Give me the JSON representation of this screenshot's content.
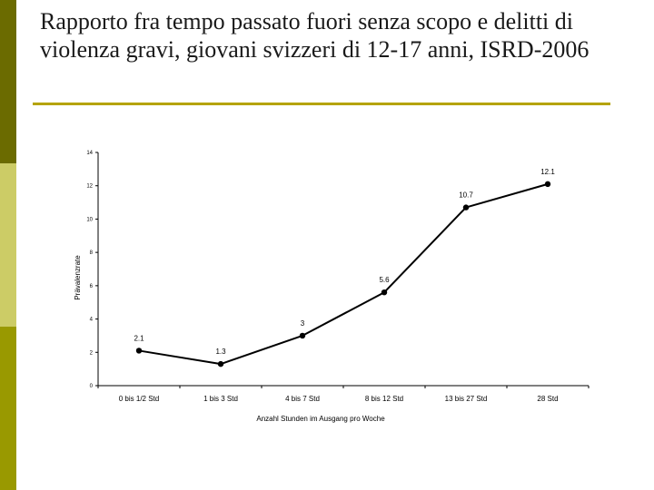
{
  "slide": {
    "title": "Rapporto fra tempo passato fuori senza scopo e delitti di violenza gravi, giovani svizzeri di 12-17 anni, ISRD-2006",
    "sidebar_colors": [
      "#6b6b00",
      "#cccc66",
      "#999900"
    ],
    "rule_color": "#b5a300"
  },
  "chart_data": {
    "type": "line",
    "categories": [
      "0 bis 1/2 Std",
      "1 bis 3 Std",
      "4 bis 7 Std",
      "8 bis 12 Std",
      "13 bis 27 Std",
      "28 Std"
    ],
    "series": [
      {
        "values": [
          2.1,
          1.3,
          3,
          5.6,
          10.7,
          12.1
        ]
      }
    ],
    "data_labels": [
      "2.1",
      "1.3",
      "3",
      "5.6",
      "10.7",
      "12.1"
    ],
    "xlabel": "Anzahl Stunden im Ausgang pro Woche",
    "ylabel": "Prävalenzrate",
    "ylim": [
      0,
      14
    ],
    "yticks": [
      0,
      2,
      4,
      6,
      8,
      10,
      12,
      14
    ],
    "grid": false,
    "line_color": "#000000"
  }
}
